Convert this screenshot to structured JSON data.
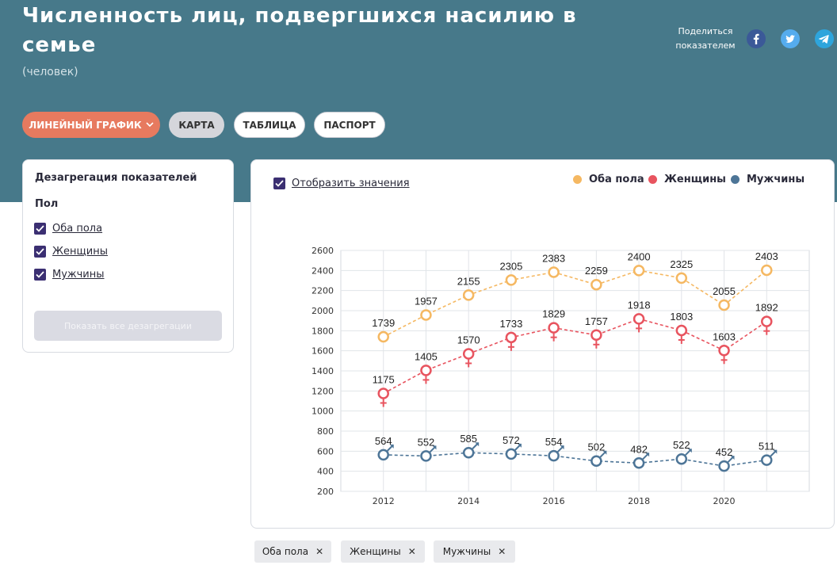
{
  "header": {
    "title": "Численность лиц, подвергшихся насилию в семье",
    "subtitle": "(человек)",
    "share_label": "Поделиться показателем"
  },
  "tabs": [
    {
      "label": "ЛИНЕЙНЫЙ ГРАФИК"
    },
    {
      "label": "КАРТА"
    },
    {
      "label": "ТАБЛИЦА"
    },
    {
      "label": "ПАСПОРТ"
    }
  ],
  "sidebar": {
    "title": "Дезагрегация показателей",
    "group_label": "Пол",
    "options": [
      {
        "label": "Оба пола",
        "checked": true
      },
      {
        "label": "Женщины",
        "checked": true
      },
      {
        "label": "Мужчины",
        "checked": true
      }
    ],
    "show_all_label": "Показать все дезагрегации"
  },
  "chart_panel": {
    "show_values_label": "Отобразить значения",
    "show_values_checked": true
  },
  "filter_chips": [
    {
      "label": "Оба пола"
    },
    {
      "label": "Женщины"
    },
    {
      "label": "Мужчины"
    }
  ],
  "colors": {
    "accent": "#e77a5f",
    "header_bg": "#47798a",
    "checkbox": "#3b2f72",
    "both": "#f5b862",
    "women": "#e8545f",
    "men": "#4d7597"
  },
  "chart_data": {
    "type": "line",
    "title": "",
    "xlabel": "",
    "ylabel": "",
    "x": [
      2012,
      2013,
      2014,
      2015,
      2016,
      2017,
      2018,
      2019,
      2020,
      2021
    ],
    "x_ticks": [
      2012,
      2014,
      2016,
      2018,
      2020
    ],
    "ylim": [
      200,
      2600
    ],
    "y_ticks": [
      200,
      400,
      600,
      800,
      1000,
      1200,
      1400,
      1600,
      1800,
      2000,
      2200,
      2400,
      2600
    ],
    "grid": true,
    "legend_position": "top-right",
    "line_style": "dashed",
    "series": [
      {
        "name": "Оба пола",
        "key": "both",
        "color": "#f5b862",
        "marker": "circle",
        "values": [
          1739,
          1957,
          2155,
          2305,
          2383,
          2259,
          2400,
          2325,
          2055,
          2403
        ]
      },
      {
        "name": "Женщины",
        "key": "women",
        "color": "#e8545f",
        "marker": "female",
        "values": [
          1175,
          1405,
          1570,
          1733,
          1829,
          1757,
          1918,
          1803,
          1603,
          1892
        ]
      },
      {
        "name": "Мужчины",
        "key": "men",
        "color": "#4d7597",
        "marker": "male",
        "values": [
          564,
          552,
          585,
          572,
          554,
          502,
          482,
          522,
          452,
          511
        ]
      }
    ]
  }
}
